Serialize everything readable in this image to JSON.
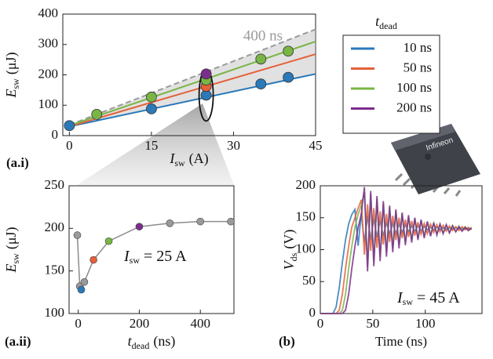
{
  "package_label": "Infineon",
  "chart_data": [
    {
      "type": "scatter",
      "label": "(a.i)",
      "x_label": {
        "symbol": "I",
        "subscript": "sw",
        "unit": "(A)"
      },
      "y_label": {
        "symbol": "E",
        "subscript": "sw",
        "unit": "(μJ)"
      },
      "xlim": [
        -1.2,
        45
      ],
      "xticks": [
        0,
        15,
        30,
        45
      ],
      "ylim": [
        0,
        400
      ],
      "yticks": [
        0,
        100,
        200,
        300,
        400
      ],
      "legend": {
        "title": {
          "symbol": "t",
          "subscript": "dead"
        },
        "position": "right"
      },
      "series": [
        {
          "name": "10 ns",
          "color": "#2a79b9",
          "x": [
            0,
            15,
            25,
            35,
            40
          ],
          "values": [
            33,
            88,
            133,
            170,
            192
          ],
          "fit_x": [
            0,
            45
          ],
          "fit_values": [
            30,
            203
          ]
        },
        {
          "name": "50 ns",
          "color": "#e5603a",
          "x": [
            25
          ],
          "values": [
            162
          ],
          "fit_x": [
            0,
            45
          ],
          "fit_values": [
            30,
            268
          ]
        },
        {
          "name": "100 ns",
          "color": "#79b545",
          "x": [
            5,
            15,
            25,
            35,
            40
          ],
          "values": [
            70,
            127,
            183,
            252,
            278
          ],
          "fit_x": [
            0,
            45
          ],
          "fit_values": [
            33,
            310
          ]
        },
        {
          "name": "200 ns",
          "color": "#7b2d8e",
          "x": [
            25
          ],
          "values": [
            203
          ]
        }
      ],
      "reference": {
        "name": "400 ns",
        "color": "#9a9a9a",
        "x": [
          0,
          45
        ],
        "values": [
          35,
          350
        ]
      }
    },
    {
      "type": "scatter",
      "label": "(a.ii)",
      "x_label": {
        "symbol": "t",
        "subscript": "dead",
        "unit": "(ns)"
      },
      "y_label": {
        "symbol": "E",
        "subscript": "sw",
        "unit": "(μJ)"
      },
      "annotation": {
        "symbol": "I",
        "subscript": "sw",
        "text": "= 25 A"
      },
      "xlim": [
        -30,
        510
      ],
      "xticks": [
        0,
        200,
        400
      ],
      "ylim": [
        100,
        250
      ],
      "yticks": [
        100,
        150,
        200,
        250
      ],
      "line_color": "#8c8c8c",
      "x": [
        -3,
        5,
        10,
        20,
        50,
        100,
        200,
        300,
        400,
        500
      ],
      "values": [
        192,
        132,
        128,
        137,
        163,
        185,
        202,
        206,
        208,
        208
      ],
      "colors": [
        "#9a9a9a",
        "#9a9a9a",
        "#2a79b9",
        "#9a9a9a",
        "#e5603a",
        "#79b545",
        "#7b2d8e",
        "#9a9a9a",
        "#9a9a9a",
        "#9a9a9a"
      ]
    },
    {
      "type": "line",
      "label": "(b)",
      "x_label": {
        "text": "Time (ns)"
      },
      "y_label": {
        "symbol": "V",
        "subscript": "ds",
        "unit": "(V)"
      },
      "annotation": {
        "symbol": "I",
        "subscript": "sw",
        "text": "= 45 A"
      },
      "xlim": [
        0,
        154
      ],
      "xticks": [
        0,
        50,
        100
      ],
      "ylim": [
        0,
        200
      ],
      "yticks": [
        0,
        50,
        100,
        150,
        200
      ],
      "x": [
        0,
        3,
        6,
        9,
        12,
        15,
        18,
        21,
        24,
        27,
        30,
        33,
        36,
        39,
        42,
        45,
        48,
        51,
        54,
        57,
        60,
        63,
        66,
        69,
        72,
        75,
        78,
        81,
        84,
        87,
        90,
        93,
        96,
        99,
        102,
        105,
        108,
        111,
        114,
        117,
        120,
        123,
        126,
        129,
        132,
        135,
        138,
        141,
        144
      ],
      "series": [
        {
          "name": "10 ns",
          "color": "#2a79b9",
          "values": [
            0,
            0,
            0,
            0,
            0,
            10,
            40,
            80,
            115,
            140,
            155,
            163,
            106,
            157,
            111,
            153,
            115,
            149,
            119,
            146,
            121,
            143,
            124,
            141,
            125,
            140,
            127,
            139,
            128,
            137,
            129,
            137,
            130,
            136,
            131,
            135,
            131,
            135,
            132,
            134,
            132,
            134,
            132,
            134,
            133,
            133,
            133,
            133,
            133
          ]
        },
        {
          "name": "50 ns",
          "color": "#e5603a",
          "values": [
            0,
            0,
            0,
            0,
            0,
            0,
            5,
            30,
            70,
            105,
            135,
            150,
            165,
            178,
            92,
            171,
            98,
            165,
            103,
            160,
            108,
            156,
            112,
            153,
            115,
            150,
            118,
            147,
            120,
            145,
            122,
            143,
            124,
            141,
            125,
            140,
            127,
            139,
            128,
            138,
            129,
            137,
            130,
            136,
            130,
            136,
            131,
            135,
            131
          ]
        },
        {
          "name": "100 ns",
          "color": "#79b545",
          "values": [
            0,
            0,
            0,
            0,
            0,
            0,
            0,
            5,
            30,
            70,
            105,
            135,
            155,
            170,
            190,
            73,
            188,
            82,
            180,
            90,
            172,
            97,
            166,
            103,
            161,
            108,
            156,
            112,
            152,
            115,
            149,
            118,
            146,
            121,
            144,
            123,
            142,
            125,
            140,
            126,
            139,
            127,
            138,
            128,
            137,
            129,
            136,
            130,
            135
          ]
        },
        {
          "name": "200 ns",
          "color": "#7b2d8e",
          "values": [
            0,
            0,
            0,
            0,
            0,
            0,
            0,
            0,
            5,
            30,
            70,
            105,
            135,
            155,
            198,
            66,
            192,
            74,
            184,
            82,
            176,
            89,
            169,
            96,
            163,
            102,
            158,
            107,
            154,
            111,
            150,
            115,
            147,
            118,
            144,
            121,
            142,
            123,
            140,
            125,
            139,
            126,
            137,
            128,
            136,
            129,
            135,
            130,
            134
          ]
        }
      ]
    }
  ]
}
